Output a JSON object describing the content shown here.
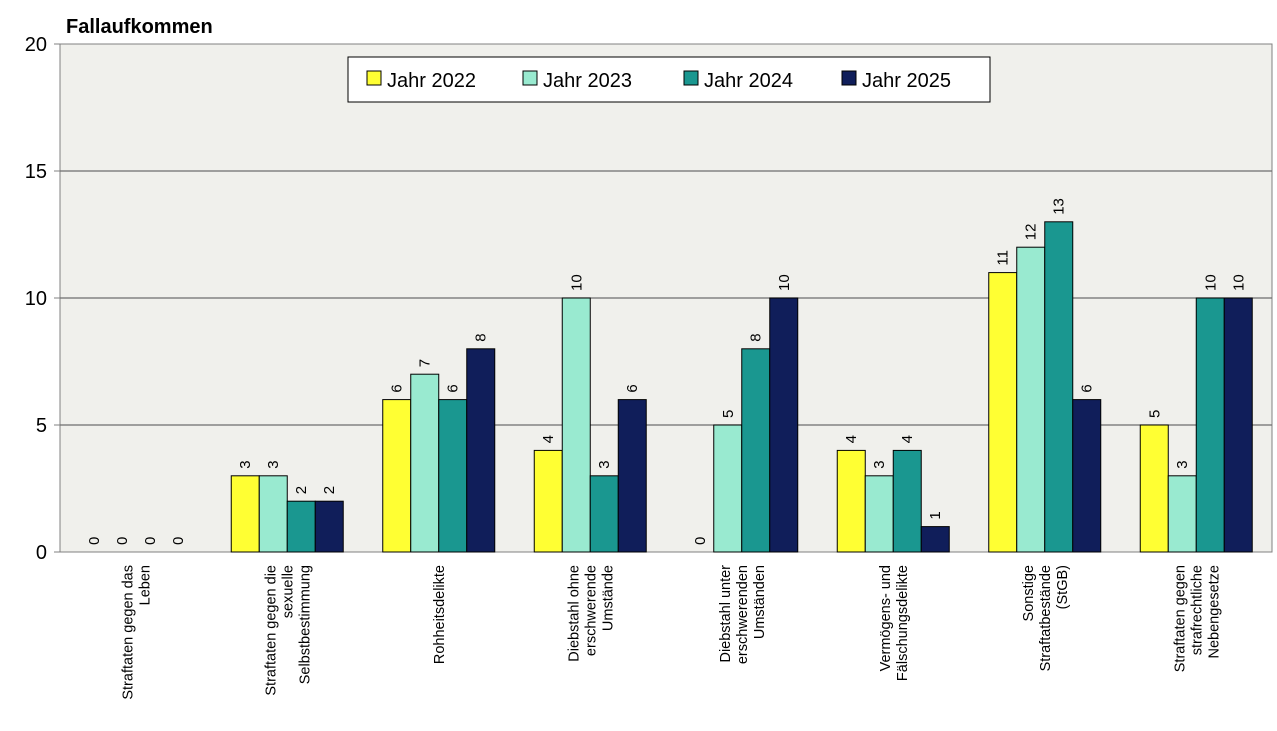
{
  "chart_data": {
    "type": "bar",
    "ylabel": "Fallaufkommen",
    "ylim": [
      0,
      20
    ],
    "yticks": [
      0,
      5,
      10,
      15,
      20
    ],
    "grid": true,
    "legend_position": "top-center",
    "categories": [
      [
        "Straftaten gegen das",
        "Leben"
      ],
      [
        "Straftaten gegen die",
        "sexuelle",
        "Selbstbestimmung"
      ],
      [
        "Rohheitsdelikte"
      ],
      [
        "Diebstahl ohne",
        "erschwerende",
        "Umstände"
      ],
      [
        "Diebstahl unter",
        "erschwerenden",
        "Umständen"
      ],
      [
        "Vermögens- und",
        "Fälschungsdelikte"
      ],
      [
        "Sonstige",
        "Straftatbestände",
        "(StGB)"
      ],
      [
        "Straftaten gegen",
        "strafrechtliche",
        "Nebengesetze"
      ]
    ],
    "series": [
      {
        "name": "Jahr 2022",
        "color": "#ffff33",
        "values": [
          0,
          3,
          6,
          4,
          0,
          4,
          11,
          5
        ]
      },
      {
        "name": "Jahr 2023",
        "color": "#99ead0",
        "values": [
          0,
          3,
          7,
          10,
          5,
          3,
          12,
          3
        ]
      },
      {
        "name": "Jahr 2024",
        "color": "#1a9790",
        "values": [
          0,
          2,
          6,
          3,
          8,
          4,
          13,
          10
        ]
      },
      {
        "name": "Jahr 2025",
        "color": "#101e5a",
        "values": [
          0,
          2,
          8,
          6,
          10,
          1,
          6,
          10
        ]
      }
    ]
  }
}
